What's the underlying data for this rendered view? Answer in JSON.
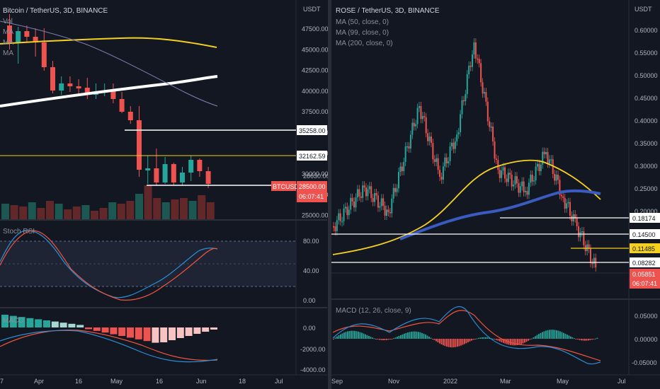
{
  "colors": {
    "bg": "#131722",
    "up": "#26a69a",
    "down": "#ef5350",
    "yellow": "#f5d020",
    "white": "#ffffff",
    "blue": "#3a5bbf",
    "grid": "#2a2e39"
  },
  "left": {
    "title": "Bitcoin / TetherUS, 3D, BINANCE",
    "indicators": [
      "Vol",
      "MA",
      "MA",
      "MA"
    ],
    "currency": "USDT",
    "price_ticks": [
      "47500.00",
      "45000.00",
      "42500.00",
      "40000.00",
      "37500.00",
      "35000.00",
      "32500.00",
      "30000.00",
      "27500.00",
      "25000.00"
    ],
    "levels": [
      "35258.00",
      "32162.59",
      "28630.00"
    ],
    "last_symbol": "BTCUSDT",
    "last_price": "28500.00",
    "countdown": "06:07:41",
    "stoch_label": "Stoch RSI",
    "stoch_ticks": [
      "80.00",
      "40.00",
      "0.00"
    ],
    "macd_label": "MACD",
    "macd_ticks": [
      "0.00",
      "-2000.00",
      "-4000.00"
    ],
    "time_ticks": [
      "7",
      "Apr",
      "16",
      "May",
      "16",
      "Jun",
      "18",
      "Jul"
    ]
  },
  "right": {
    "title": "ROSE / TetherUS, 3D, BINANCE",
    "indicators": [
      "MA (50, close, 0)",
      "MA (99, close, 0)",
      "MA (200, close, 0)"
    ],
    "currency": "USDT",
    "price_ticks": [
      "0.60000",
      "0.55000",
      "0.50000",
      "0.45000",
      "0.40000",
      "0.35000",
      "0.30000",
      "0.25000",
      "0.20000"
    ],
    "levels": [
      "0.18174",
      "0.14500",
      "0.11485",
      "0.08282"
    ],
    "last_price": "0.05851",
    "countdown": "06:07:41",
    "macd_label": "MACD (12, 26, close, 9)",
    "macd_ticks": [
      "0.05000",
      "0.00000",
      "-0.05000"
    ],
    "time_ticks": [
      "Sep",
      "Nov",
      "2022",
      "Mar",
      "May",
      "Jul"
    ]
  }
}
